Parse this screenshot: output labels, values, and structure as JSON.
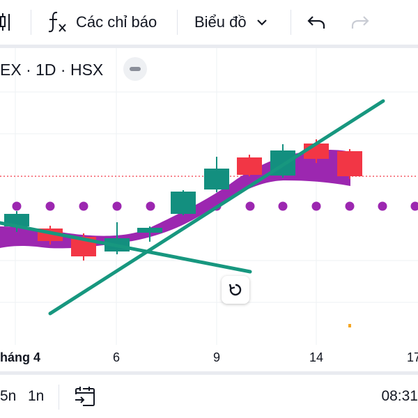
{
  "toolbar": {
    "indicators_label": "Các chỉ báo",
    "chart_type_label": "Biểu đồ"
  },
  "legend": {
    "symbol_text": "EX · 1D · HSX"
  },
  "x_axis": {
    "ticks": [
      "háng 4",
      "6",
      "9",
      "14",
      "17"
    ]
  },
  "bottom_bar": {
    "ranges": [
      "5n",
      "1n"
    ],
    "time": "08:31"
  },
  "colors": {
    "up": "#138f7f",
    "down": "#f23645",
    "ma_band": "#9c27b0",
    "dots": "#9c27b0",
    "trendline": "#17977f",
    "last_price_line": "#f23645"
  },
  "icons": {
    "chart_style": "candles-icon",
    "indicators": "fx-icon",
    "dropdown": "chevron-down-icon",
    "undo": "undo-icon",
    "redo": "redo-icon",
    "collapse": "minus-icon",
    "reset": "reset-icon",
    "go_to_date": "calendar-go-icon"
  }
}
